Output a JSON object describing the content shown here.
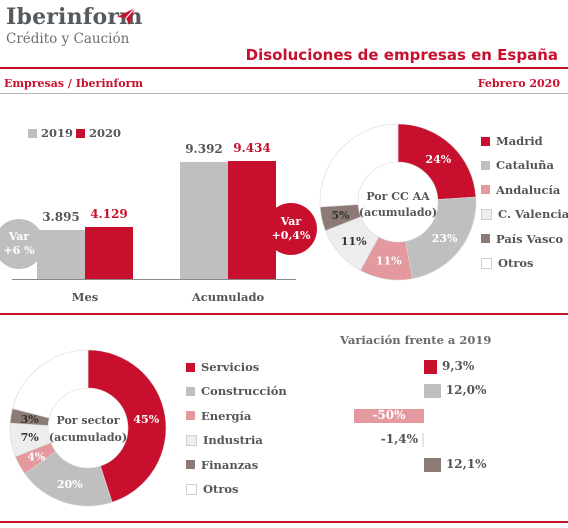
{
  "header": {
    "logo_name": "Iberinform",
    "logo_sub": "Crédito y Caución",
    "title": "Disoluciones de empresas en España",
    "source": "Empresas / Iberinform",
    "period": "Febrero 2020"
  },
  "colors": {
    "accent": "#c8102e",
    "grey": "#bfbfbf",
    "pink": "#e3999d",
    "light": "#ededed",
    "brown": "#8c7b74",
    "white": "#ffffff"
  },
  "chart_data": [
    {
      "type": "bar",
      "categories": [
        "Mes",
        "Acumulado"
      ],
      "series": [
        {
          "name": "2019",
          "values": [
            3895,
            9392
          ],
          "labels": [
            "3.895",
            "9.392"
          ]
        },
        {
          "name": "2020",
          "values": [
            4129,
            9434
          ],
          "labels": [
            "4.129",
            "9.434"
          ]
        }
      ],
      "ylim": [
        0,
        10000
      ],
      "annotations": [
        {
          "line1": "Var",
          "line2": "+6 %"
        },
        {
          "line1": "Var",
          "line2": "+0,4%"
        }
      ]
    },
    {
      "type": "pie",
      "center_label": [
        "Por CC AA",
        "(acumulado)"
      ],
      "labels": [
        "Madrid",
        "Cataluña",
        "Andalucía",
        "C. Valenciana",
        "País Vasco",
        "Otros"
      ],
      "values": [
        24,
        23,
        11,
        11,
        5,
        26
      ],
      "value_labels": [
        "24%",
        "23%",
        "11%",
        "11%",
        "5%",
        ""
      ]
    },
    {
      "type": "pie",
      "center_label": [
        "Por sector",
        "(acumulado)"
      ],
      "labels": [
        "Servicios",
        "Construcción",
        "Energía",
        "Industria",
        "Finanzas",
        "Otros"
      ],
      "values": [
        45,
        20,
        4,
        7,
        3,
        21
      ],
      "value_labels": [
        "45%",
        "20%",
        "4%",
        "7%",
        "3%",
        ""
      ]
    },
    {
      "type": "bar",
      "title": "Variación frente a 2019",
      "categories": [
        "Servicios",
        "Construcción",
        "Energía",
        "Industria",
        "Finanzas",
        "Otros"
      ],
      "values": [
        9.3,
        12.0,
        -50,
        -1.4,
        12.1,
        null
      ],
      "value_labels": [
        "9,3%",
        "12,0%",
        "-50%",
        "-1,4%",
        "12,1%",
        ""
      ]
    }
  ]
}
